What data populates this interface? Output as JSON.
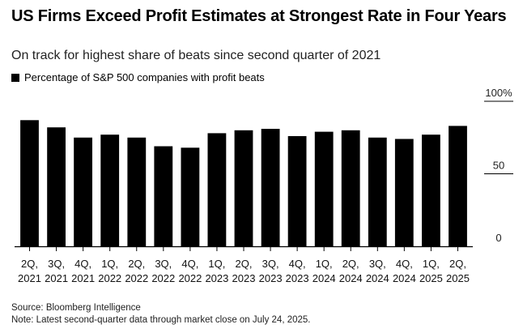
{
  "title": "US Firms Exceed Profit Estimates at Strongest Rate in Four Years",
  "subtitle": "On track for highest share of beats since second quarter of 2021",
  "legend_label": "Percentage of S&P 500 companies with profit beats",
  "source": "Source: Bloomberg Intelligence",
  "note": "Note: Latest second-quarter data through market close on July 24, 2025.",
  "colors": {
    "bar": "#000000",
    "axis": "#000000",
    "background": "#ffffff"
  },
  "chart_data": {
    "type": "bar",
    "title": "US Firms Exceed Profit Estimates at Strongest Rate in Four Years",
    "ylabel": "Percentage of S&P 500 companies with profit beats",
    "xlabel": "",
    "ylim": [
      0,
      100
    ],
    "yticks": [
      "100%",
      "50",
      "0"
    ],
    "ytick_values": [
      100,
      50,
      0
    ],
    "categories": [
      {
        "q": "2Q,",
        "y": "2021"
      },
      {
        "q": "3Q,",
        "y": "2021"
      },
      {
        "q": "4Q,",
        "y": "2021"
      },
      {
        "q": "1Q,",
        "y": "2022"
      },
      {
        "q": "2Q,",
        "y": "2022"
      },
      {
        "q": "3Q,",
        "y": "2022"
      },
      {
        "q": "4Q,",
        "y": "2022"
      },
      {
        "q": "1Q,",
        "y": "2023"
      },
      {
        "q": "2Q,",
        "y": "2023"
      },
      {
        "q": "3Q,",
        "y": "2023"
      },
      {
        "q": "4Q,",
        "y": "2023"
      },
      {
        "q": "1Q,",
        "y": "2024"
      },
      {
        "q": "2Q,",
        "y": "2024"
      },
      {
        "q": "3Q,",
        "y": "2024"
      },
      {
        "q": "4Q,",
        "y": "2024"
      },
      {
        "q": "1Q,",
        "y": "2025"
      },
      {
        "q": "2Q,",
        "y": "2025"
      }
    ],
    "series": [
      {
        "name": "Percentage of S&P 500 companies with profit beats",
        "values": [
          87,
          82,
          75,
          77,
          75,
          69,
          68,
          78,
          80,
          81,
          76,
          79,
          80,
          75,
          74,
          77,
          83
        ]
      }
    ]
  }
}
